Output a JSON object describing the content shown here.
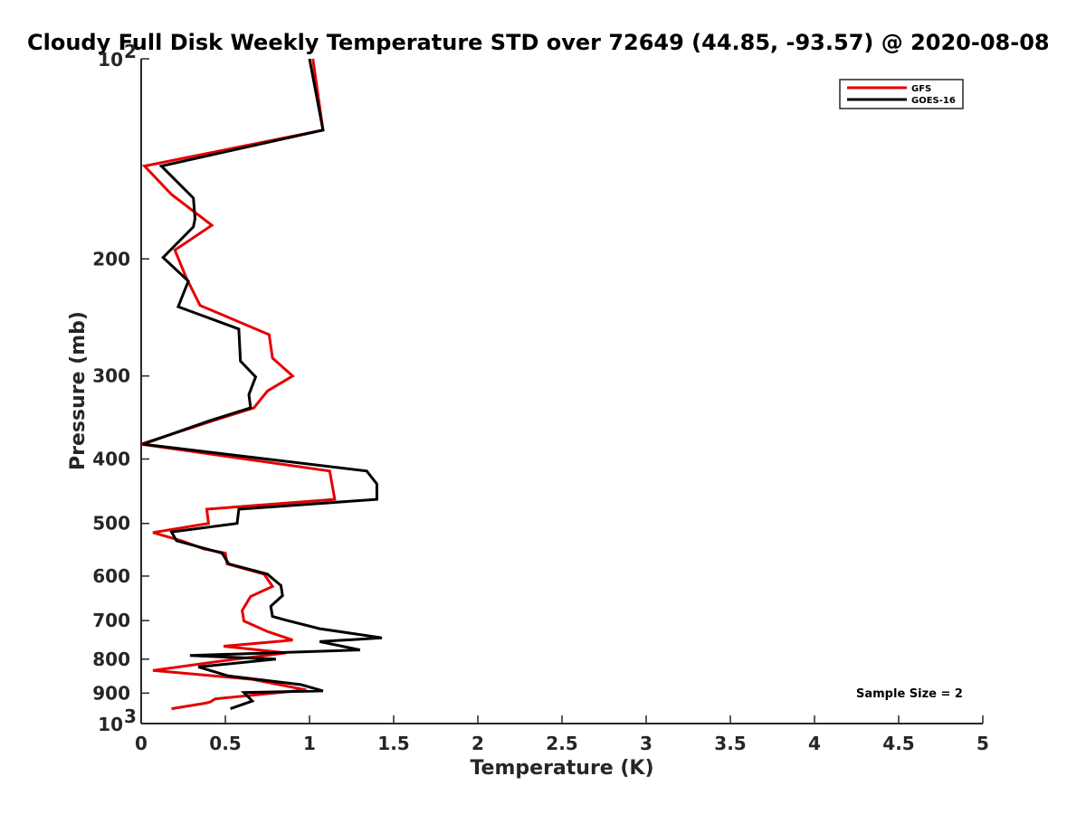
{
  "chart_data": {
    "type": "line",
    "title": "Cloudy Full Disk Weekly Temperature STD over 72649 (44.85, -93.57) @ 2020-08-08",
    "xlabel": "Temperature (K)",
    "ylabel": "Pressure (mb)",
    "xlim": [
      0,
      5
    ],
    "ylim": [
      100,
      1000
    ],
    "yscale": "log",
    "y_reversed": true,
    "grid": false,
    "legend_position": "top-right",
    "x_ticks": [
      "0",
      "0.5",
      "1",
      "1.5",
      "2",
      "2.5",
      "3",
      "3.5",
      "4",
      "4.5",
      "5"
    ],
    "x_tick_values": [
      0,
      0.5,
      1,
      1.5,
      2,
      2.5,
      3,
      3.5,
      4,
      4.5,
      5
    ],
    "y_ticks": [
      {
        "value": 100,
        "base": "10",
        "exp": "2",
        "label": ""
      },
      {
        "value": 200,
        "label": "200"
      },
      {
        "value": 300,
        "label": "300"
      },
      {
        "value": 400,
        "label": "400"
      },
      {
        "value": 500,
        "label": "500"
      },
      {
        "value": 600,
        "label": "600"
      },
      {
        "value": 700,
        "label": "700"
      },
      {
        "value": 800,
        "label": "800"
      },
      {
        "value": 900,
        "label": "900"
      },
      {
        "value": 1000,
        "base": "10",
        "exp": "3",
        "label": ""
      }
    ],
    "annotation": "Sample Size = 2",
    "series": [
      {
        "name": "GFS",
        "color": "#e60000",
        "x": [
          1.02,
          1.08,
          0.02,
          0.18,
          0.42,
          0.2,
          0.27,
          0.35,
          0.76,
          0.78,
          0.9,
          0.75,
          0.67,
          0.43,
          0.0,
          1.12,
          1.15,
          0.39,
          0.4,
          0.07,
          0.24,
          0.37,
          0.5,
          0.51,
          0.73,
          0.78,
          0.65,
          0.6,
          0.61,
          0.75,
          0.9,
          0.49,
          0.86,
          0.51,
          0.07,
          0.66,
          0.98,
          0.44,
          0.41,
          0.38,
          0.18
        ],
        "y": [
          100,
          128,
          145,
          160,
          178,
          194,
          214,
          235,
          260,
          282,
          300,
          316,
          335,
          350,
          380,
          417,
          460,
          476,
          500,
          516,
          531,
          546,
          554,
          575,
          596,
          622,
          644,
          676,
          701,
          727,
          749,
          765,
          783,
          803,
          832,
          858,
          890,
          918,
          928,
          932,
          950
        ]
      },
      {
        "name": "GOES-16",
        "color": "#000000",
        "x": [
          1.0,
          1.08,
          0.12,
          0.31,
          0.32,
          0.31,
          0.13,
          0.28,
          0.22,
          0.58,
          0.59,
          0.68,
          0.64,
          0.65,
          0.41,
          0.01,
          1.34,
          1.4,
          1.4,
          0.58,
          0.57,
          0.18,
          0.21,
          0.48,
          0.52,
          0.75,
          0.83,
          0.84,
          0.77,
          0.78,
          0.86,
          1.06,
          1.43,
          1.06,
          1.3,
          0.29,
          0.8,
          0.34,
          0.52,
          0.95,
          1.08,
          0.61,
          0.66,
          0.53
        ],
        "y": [
          100,
          128,
          145,
          162,
          174,
          179,
          199,
          216,
          236,
          255,
          285,
          301,
          320,
          335,
          350,
          380,
          417,
          436,
          460,
          476,
          500,
          515,
          531,
          554,
          575,
          596,
          620,
          642,
          666,
          690,
          699,
          720,
          743,
          753,
          775,
          790,
          800,
          822,
          848,
          874,
          893,
          898,
          925,
          950
        ]
      }
    ]
  }
}
